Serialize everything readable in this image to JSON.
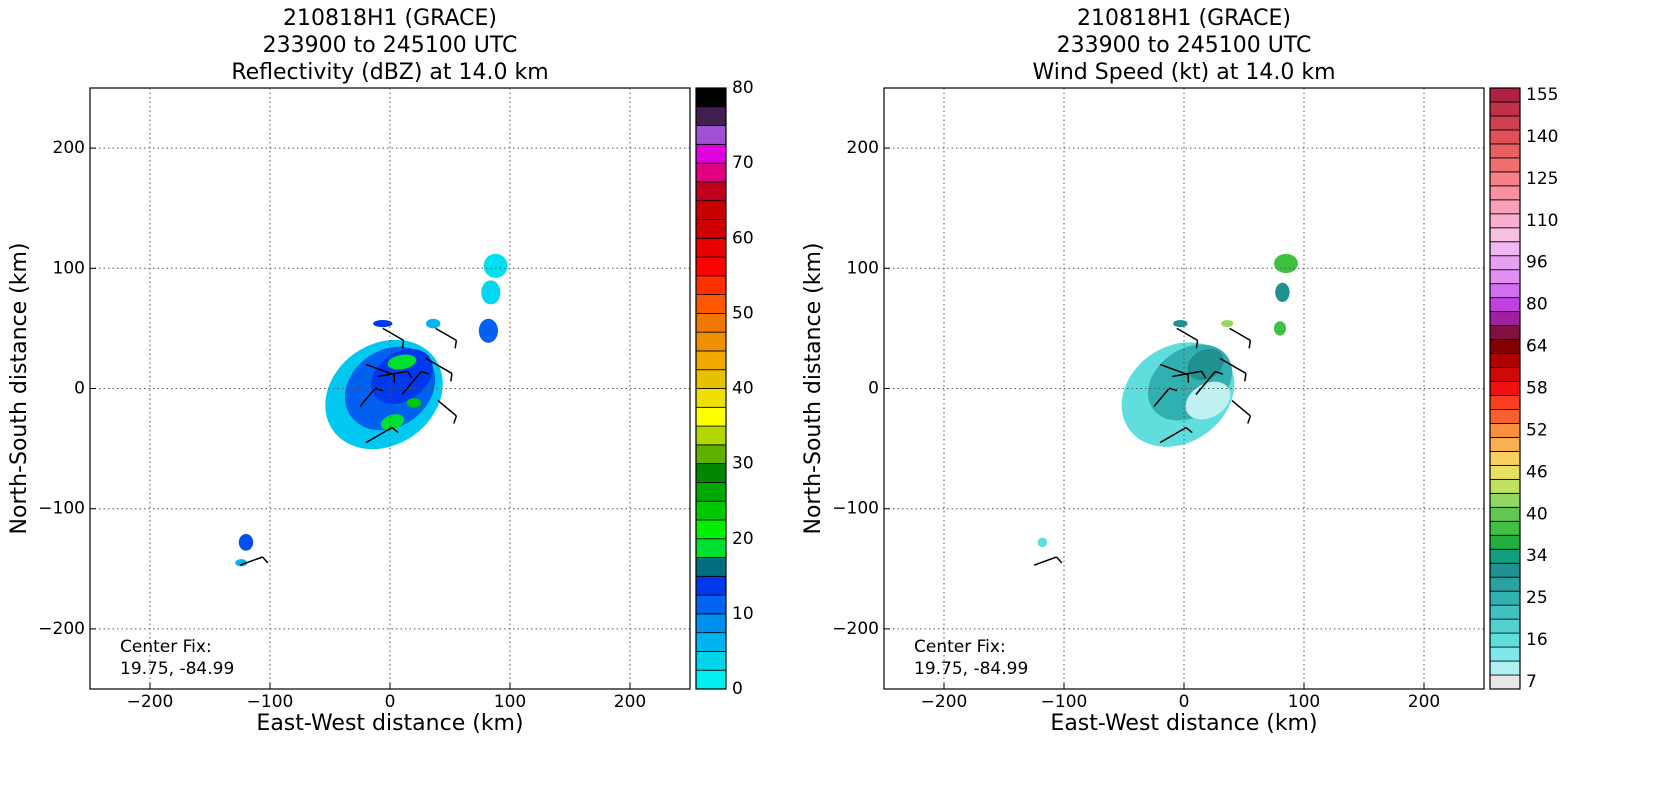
{
  "chart_data": [
    {
      "type": "radar",
      "title": [
        "210818H1 (GRACE)",
        "233900 to 245100 UTC",
        "Reflectivity (dBZ) at 14.0 km"
      ],
      "xlabel": "East-West distance (km)",
      "ylabel": "North-South distance (km)",
      "xlim": [
        -250,
        250
      ],
      "ylim": [
        -250,
        250
      ],
      "xticks": [
        {
          "value": -200,
          "label": "−200"
        },
        {
          "value": -100,
          "label": "−100"
        },
        0,
        100,
        200
      ],
      "yticks": [
        {
          "value": -200,
          "label": "−200"
        },
        {
          "value": -100,
          "label": "−100"
        },
        0,
        100,
        200
      ],
      "grid": true,
      "annotation": [
        "Center Fix:",
        "19.75, -84.99"
      ],
      "colorbar": {
        "lim": [
          0,
          80
        ],
        "ticks": [
          0,
          10,
          20,
          30,
          40,
          50,
          60,
          70,
          80
        ],
        "colors": [
          "#00f0f0",
          "#00d4e8",
          "#00b4f0",
          "#0090f0",
          "#0064f0",
          "#0038f0",
          "#006e80",
          "#00e030",
          "#00f000",
          "#00c800",
          "#00a800",
          "#008800",
          "#60b000",
          "#b0d800",
          "#ffff00",
          "#f0e000",
          "#e8c000",
          "#f0a800",
          "#f09000",
          "#f07800",
          "#ff5800",
          "#ff3000",
          "#ff0000",
          "#e80000",
          "#d00000",
          "#c80000",
          "#c00020",
          "#e00080",
          "#e000e0",
          "#a050d0",
          "#402050",
          "#000000"
        ]
      }
    },
    {
      "type": "radar",
      "title": [
        "210818H1 (GRACE)",
        "233900 to 245100 UTC",
        "Wind Speed (kt) at 14.0 km"
      ],
      "xlabel": "East-West distance (km)",
      "ylabel": "North-South distance (km)",
      "xlim": [
        -250,
        250
      ],
      "ylim": [
        -250,
        250
      ],
      "xticks": [
        {
          "value": -200,
          "label": "−200"
        },
        {
          "value": -100,
          "label": "−100"
        },
        0,
        100,
        200
      ],
      "yticks": [
        {
          "value": -200,
          "label": "−200"
        },
        {
          "value": -100,
          "label": "−100"
        },
        0,
        100,
        200
      ],
      "grid": true,
      "annotation": [
        "Center Fix:",
        "19.75, -84.99"
      ],
      "colorbar": {
        "ticks": [
          7,
          16,
          25,
          34,
          40,
          46,
          52,
          58,
          64,
          80,
          96,
          110,
          125,
          140,
          155
        ],
        "colors": [
          "#e8e8e8",
          "#b0f0f0",
          "#80e8e8",
          "#60dede",
          "#50d0d0",
          "#40c0c0",
          "#30b0b0",
          "#2aa0a0",
          "#209090",
          "#10a080",
          "#20b040",
          "#40c040",
          "#60c850",
          "#90d860",
          "#c0e060",
          "#e8e060",
          "#f8d060",
          "#f8b050",
          "#f89040",
          "#f86030",
          "#f84020",
          "#f01010",
          "#d00808",
          "#b00000",
          "#800000",
          "#801040",
          "#a020a0",
          "#c040e0",
          "#d070f0",
          "#e090f0",
          "#e8a0f0",
          "#f0b8f0",
          "#f8c0e0",
          "#f8b0d0",
          "#f8a0b8",
          "#f890a0",
          "#f88088",
          "#f07070",
          "#e86060",
          "#e05058",
          "#d04050",
          "#c03048",
          "#b02040"
        ]
      }
    }
  ]
}
